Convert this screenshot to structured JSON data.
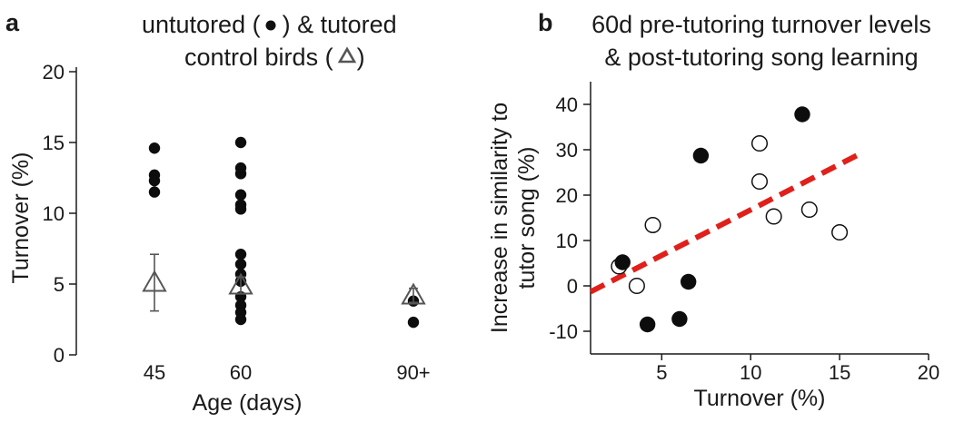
{
  "chart_data": [
    {
      "panel": "a",
      "type": "scatter",
      "title_parts": [
        "untutored (",
        ") & tutored",
        "control birds (",
        ")"
      ],
      "title_markers": [
        "untutored-filled-circle",
        "tutored-open-triangle"
      ],
      "xlabel": "Age (days)",
      "ylabel": "Turnover (%)",
      "ylim": [
        0,
        20
      ],
      "yticks": [
        0,
        5,
        10,
        15,
        20
      ],
      "x_positions": {
        "45": 45,
        "60": 60,
        "90+": 90
      },
      "xticks": [
        {
          "value": 45,
          "label": "45"
        },
        {
          "value": 60,
          "label": "60"
        },
        {
          "value": 90,
          "label": "90+"
        }
      ],
      "series": [
        {
          "name": "untutored",
          "marker": "filled-circle",
          "points": [
            {
              "x": 45,
              "y": 14.6
            },
            {
              "x": 45,
              "y": 12.7
            },
            {
              "x": 45,
              "y": 12.3
            },
            {
              "x": 45,
              "y": 11.5
            },
            {
              "x": 60,
              "y": 15.0
            },
            {
              "x": 60,
              "y": 13.2
            },
            {
              "x": 60,
              "y": 12.8
            },
            {
              "x": 60,
              "y": 11.3
            },
            {
              "x": 60,
              "y": 10.6
            },
            {
              "x": 60,
              "y": 10.3
            },
            {
              "x": 60,
              "y": 7.1
            },
            {
              "x": 60,
              "y": 6.4
            },
            {
              "x": 60,
              "y": 5.7
            },
            {
              "x": 60,
              "y": 5.2
            },
            {
              "x": 60,
              "y": 4.1
            },
            {
              "x": 60,
              "y": 3.5
            },
            {
              "x": 60,
              "y": 3.0
            },
            {
              "x": 60,
              "y": 2.5
            },
            {
              "x": 90,
              "y": 3.8
            },
            {
              "x": 90,
              "y": 2.3
            }
          ]
        },
        {
          "name": "tutored control",
          "marker": "open-triangle",
          "points": [
            {
              "x": 45,
              "y": 5.1,
              "err": 2.0
            },
            {
              "x": 60,
              "y": 4.9,
              "err": 0.6
            },
            {
              "x": 90,
              "y": 4.2,
              "err": 0.5
            }
          ]
        }
      ]
    },
    {
      "panel": "b",
      "type": "scatter",
      "title": [
        "60d pre-tutoring turnover levels",
        "& post-tutoring song learning"
      ],
      "xlabel": "Turnover (%)",
      "ylabel": [
        "Increase in similarity to",
        "tutor song (%)"
      ],
      "xlim": [
        1,
        20
      ],
      "ylim": [
        -15,
        45
      ],
      "xticks": [
        5,
        10,
        15,
        20
      ],
      "yticks": [
        -10,
        0,
        10,
        20,
        30,
        40
      ],
      "series": [
        {
          "name": "filled",
          "marker": "filled-circle",
          "points": [
            {
              "x": 12.9,
              "y": 37.8
            },
            {
              "x": 7.2,
              "y": 28.7
            },
            {
              "x": 2.8,
              "y": 5.2
            },
            {
              "x": 6.5,
              "y": 0.9
            },
            {
              "x": 4.2,
              "y": -8.5
            },
            {
              "x": 6.0,
              "y": -7.3
            }
          ]
        },
        {
          "name": "open",
          "marker": "open-circle",
          "points": [
            {
              "x": 10.5,
              "y": 31.4
            },
            {
              "x": 10.5,
              "y": 23.0
            },
            {
              "x": 11.3,
              "y": 15.3
            },
            {
              "x": 13.3,
              "y": 16.8
            },
            {
              "x": 15.0,
              "y": 11.8
            },
            {
              "x": 4.5,
              "y": 13.4
            },
            {
              "x": 2.6,
              "y": 4.3
            },
            {
              "x": 3.6,
              "y": 0.0
            }
          ]
        }
      ],
      "trendline": {
        "style": "dashed",
        "color": "#e0201a",
        "x": [
          1.0,
          16.2
        ],
        "y": [
          -1.3,
          29.2
        ]
      }
    }
  ]
}
